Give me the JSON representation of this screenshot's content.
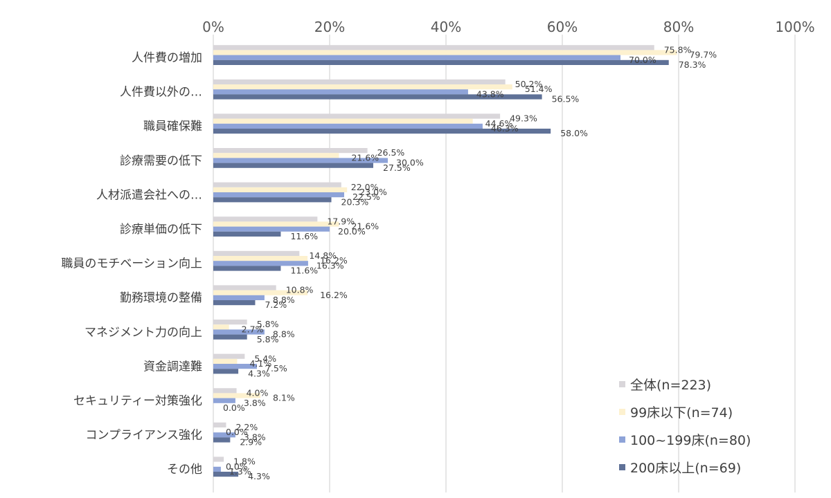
{
  "chart_data": {
    "type": "bar",
    "orientation": "horizontal",
    "xlim": [
      0,
      100
    ],
    "ticks": [
      "0%",
      "20%",
      "40%",
      "60%",
      "80%",
      "100%"
    ],
    "tick_values": [
      0,
      20,
      40,
      60,
      80,
      100
    ],
    "grid": true,
    "legend_position": "bottom-right",
    "categories": [
      "人件費の増加",
      "人件費以外の…",
      "職員確保難",
      "診療需要の低下",
      "人材派遣会社への…",
      "診療単価の低下",
      "職員のモチベーション向上",
      "勤務環境の整備",
      "マネジメント力の向上",
      "資金調達難",
      "セキュリティー対策強化",
      "コンプライアンス強化",
      "その他"
    ],
    "series": [
      {
        "name": "全体(n=223)",
        "color": "#d9d6da",
        "values": [
          75.8,
          50.2,
          49.3,
          26.5,
          22.0,
          17.9,
          14.8,
          10.8,
          5.8,
          5.4,
          4.0,
          2.2,
          1.8
        ],
        "labels": [
          "75.8%",
          "50.2%",
          "49.3%",
          "26.5%",
          "22.0%",
          "17.9%",
          "14.8%",
          "10.8%",
          "5.8%",
          "5.4%",
          "4.0%",
          "2.2%",
          "1.8%"
        ]
      },
      {
        "name": "99床以下(n=74)",
        "color": "#fdf1cf",
        "values": [
          79.7,
          51.4,
          44.6,
          21.6,
          23.0,
          21.6,
          16.2,
          16.2,
          2.7,
          4.1,
          8.1,
          0.0,
          0.0
        ],
        "labels": [
          "79.7%",
          "51.4%",
          "44.6%",
          "21.6%",
          "23.0%",
          "21.6%",
          "16.2%",
          "16.2%",
          "2.7%",
          "4.1%",
          "8.1%",
          "0.0%",
          "0.0%"
        ]
      },
      {
        "name": "100~199床(n=80)",
        "color": "#8ea3d8",
        "values": [
          70.0,
          43.8,
          46.3,
          30.0,
          22.5,
          20.0,
          16.3,
          8.8,
          8.8,
          7.5,
          3.8,
          3.8,
          1.3
        ],
        "labels": [
          "70.0%",
          "43.8%",
          "46.3%",
          "30.0%",
          "22.5%",
          "20.0%",
          "16.3%",
          "8.8%",
          "8.8%",
          "7.5%",
          "3.8%",
          "3.8%",
          "1.3%"
        ]
      },
      {
        "name": "200床以上(n=69)",
        "color": "#5f7197",
        "values": [
          78.3,
          56.5,
          58.0,
          27.5,
          20.3,
          11.6,
          11.6,
          7.2,
          5.8,
          4.3,
          0.0,
          2.9,
          4.3
        ],
        "labels": [
          "78.3%",
          "56.5%",
          "58.0%",
          "27.5%",
          "20.3%",
          "11.6%",
          "11.6%",
          "7.2%",
          "5.8%",
          "4.3%",
          "0.0%",
          "2.9%",
          "4.3%"
        ]
      }
    ]
  }
}
